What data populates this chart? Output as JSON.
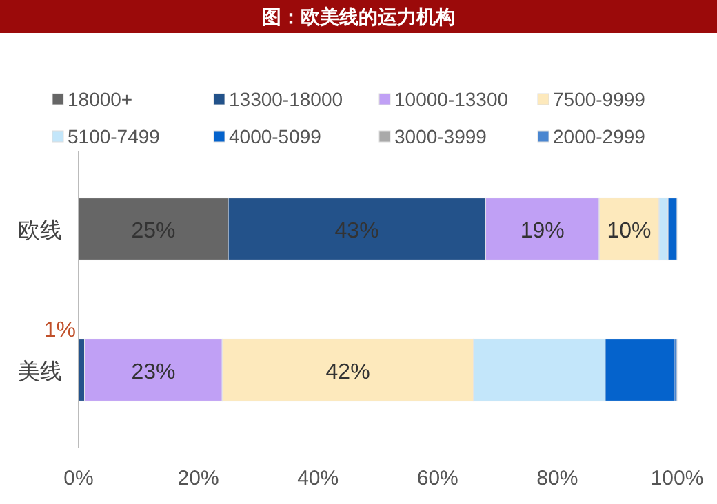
{
  "chart_data": {
    "type": "bar",
    "title": "图：欧美线的运力机构",
    "orientation": "horizontal",
    "stacked": true,
    "categories": [
      "欧线",
      "美线"
    ],
    "series": [
      {
        "name": "18000+",
        "color": "#666666",
        "values": [
          25,
          0
        ],
        "value_labels": [
          "25%",
          null
        ]
      },
      {
        "name": "13300-18000",
        "color": "#23528a",
        "values": [
          43,
          1
        ],
        "value_labels": [
          "43%",
          "1%"
        ]
      },
      {
        "name": "10000-13300",
        "color": "#c0a0f5",
        "values": [
          19,
          23
        ],
        "value_labels": [
          "19%",
          "23%"
        ]
      },
      {
        "name": "7500-9999",
        "color": "#fde9bc",
        "values": [
          10,
          42
        ],
        "value_labels": [
          "10%",
          "42%"
        ]
      },
      {
        "name": "5100-7499",
        "color": "#c3e6fa",
        "values": [
          1.5,
          22
        ],
        "value_labels": [
          null,
          null
        ]
      },
      {
        "name": "4000-5099",
        "color": "#0563cc",
        "values": [
          1.5,
          11.5
        ],
        "value_labels": [
          null,
          null
        ]
      },
      {
        "name": "3000-3999",
        "color": "#a9a9a9",
        "values": [
          0,
          0
        ],
        "value_labels": [
          null,
          null
        ]
      },
      {
        "name": "2000-2999",
        "color": "#4a86d0",
        "values": [
          0,
          0.5
        ],
        "value_labels": [
          null,
          null
        ]
      }
    ],
    "xlim": [
      0,
      100
    ],
    "xticks": [
      {
        "value": 0,
        "label": "0%"
      },
      {
        "value": 20,
        "label": "20%"
      },
      {
        "value": 40,
        "label": "40%"
      },
      {
        "value": 60,
        "label": "60%"
      },
      {
        "value": 80,
        "label": "80%"
      },
      {
        "value": 100,
        "label": "100%"
      }
    ],
    "legend": "top",
    "grid": false
  }
}
